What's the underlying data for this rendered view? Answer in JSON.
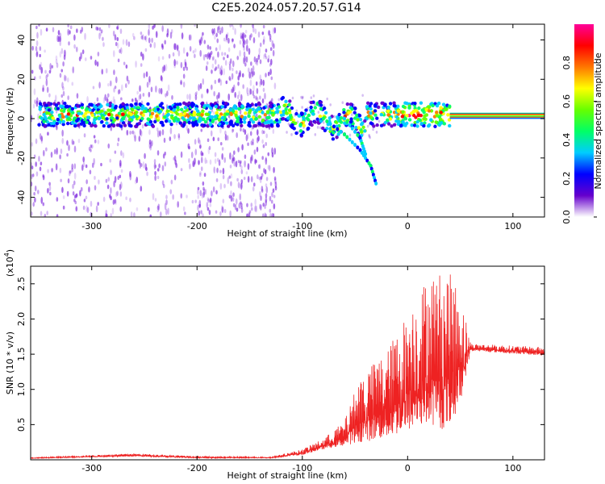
{
  "title": "C2E5.2024.057.20.57.G14",
  "chart_data": [
    {
      "type": "heatmap",
      "xlabel": "Height of straight line (km)",
      "ylabel": "Frequency (Hz)",
      "xlim": [
        -358,
        130
      ],
      "ylim": [
        -50,
        48
      ],
      "x_ticks": [
        -300,
        -200,
        -100,
        0,
        100
      ],
      "y_ticks": [
        -40,
        -20,
        0,
        20,
        40
      ],
      "colorbar": {
        "label": "Normalized spectral amplitude",
        "range": [
          0,
          1
        ],
        "ticks": [
          "0.0",
          "0.2",
          "0.4",
          "0.6",
          "0.8"
        ],
        "colors": [
          "#ffffff",
          "#6600cc",
          "#0000ff",
          "#00ccff",
          "#00ff66",
          "#66ff00",
          "#ffff00",
          "#ff7700",
          "#ff0000",
          "#ff0099"
        ]
      },
      "main_band": {
        "x_range": [
          -350,
          40
        ],
        "center_freq_hz": 2,
        "noisy_region_x": [
          -358,
          -125
        ]
      },
      "branches": [
        {
          "x": [
            -80,
            -60,
            -45,
            -35,
            -30
          ],
          "y": [
            0,
            -8,
            -16,
            -24,
            -33
          ]
        },
        {
          "x": [
            -60,
            -45,
            -40
          ],
          "y": [
            0,
            -10,
            -18
          ]
        }
      ],
      "steady_tone": {
        "x_range": [
          40,
          130
        ],
        "freq_hz": [
          0,
          3
        ]
      }
    },
    {
      "type": "line",
      "xlabel": "Height of straight line (km)",
      "ylabel": "SNR (10 * v/v)",
      "y_multiplier_label": "(x10",
      "y_multiplier_exp": "4",
      "y_multiplier_close": ")",
      "xlim": [
        -358,
        130
      ],
      "ylim": [
        0,
        27500
      ],
      "x_ticks": [
        -300,
        -200,
        -100,
        0,
        100
      ],
      "y_ticks": [
        {
          "value": 5000,
          "label": "0.5"
        },
        {
          "value": 10000,
          "label": "1.0"
        },
        {
          "value": 15000,
          "label": "1.5"
        },
        {
          "value": 20000,
          "label": "2.0"
        },
        {
          "value": 25000,
          "label": "2.5"
        }
      ],
      "series": [
        {
          "color": "#ee2222",
          "envelope": [
            {
              "x": -358,
              "base": 200,
              "peak": 300
            },
            {
              "x": -260,
              "base": 500,
              "peak": 900
            },
            {
              "x": -200,
              "base": 250,
              "peak": 500
            },
            {
              "x": -130,
              "base": 250,
              "peak": 400
            },
            {
              "x": -100,
              "base": 700,
              "peak": 1500
            },
            {
              "x": -80,
              "base": 1500,
              "peak": 3000
            },
            {
              "x": -60,
              "base": 2000,
              "peak": 5500
            },
            {
              "x": -45,
              "base": 2500,
              "peak": 12000
            },
            {
              "x": -20,
              "base": 3000,
              "peak": 15500
            },
            {
              "x": 0,
              "base": 4000,
              "peak": 21000
            },
            {
              "x": 20,
              "base": 5000,
              "peak": 26500
            },
            {
              "x": 38,
              "base": 4000,
              "peak": 27000
            },
            {
              "x": 50,
              "base": 8000,
              "peak": 24000
            },
            {
              "x": 60,
              "base": 15500,
              "peak": 16500
            },
            {
              "x": 130,
              "base": 14800,
              "peak": 16000
            }
          ]
        }
      ]
    }
  ]
}
